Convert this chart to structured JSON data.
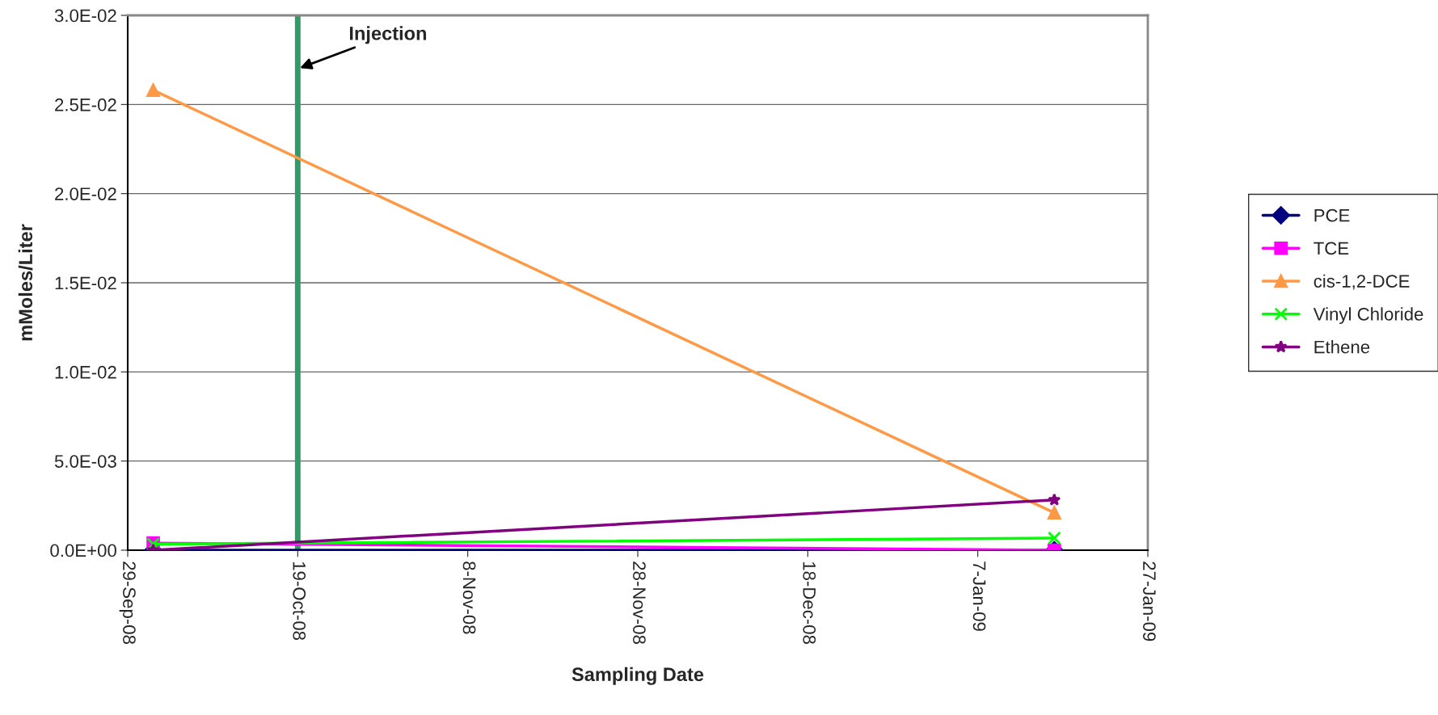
{
  "chart_data": {
    "type": "line",
    "xlabel": "Sampling Date",
    "ylabel": "mMoles/Liter",
    "x": [
      "2008-10-02",
      "2009-01-16"
    ],
    "series": [
      {
        "name": "PCE",
        "color": "#000080",
        "marker": "diamond",
        "values": [
          0.0,
          0.0
        ]
      },
      {
        "name": "TCE",
        "color": "#ff00ff",
        "marker": "square",
        "values": [
          0.0004,
          0.0
        ]
      },
      {
        "name": "cis-1,2-DCE",
        "color": "#ff9945",
        "marker": "triangle",
        "values": [
          0.0258,
          0.0021
        ]
      },
      {
        "name": "Vinyl Chloride",
        "color": "#00ff00",
        "marker": "cross",
        "values": [
          0.00034,
          0.00068
        ]
      },
      {
        "name": "Ethene",
        "color": "#800080",
        "marker": "star",
        "values": [
          0.0,
          0.00282
        ]
      }
    ],
    "xlim": [
      "2008-09-29",
      "2009-01-27"
    ],
    "xticks": [
      {
        "value": "2008-09-29",
        "label": "29-Sep-08"
      },
      {
        "value": "2008-10-19",
        "label": "19-Oct-08"
      },
      {
        "value": "2008-11-08",
        "label": "8-Nov-08"
      },
      {
        "value": "2008-11-28",
        "label": "28-Nov-08"
      },
      {
        "value": "2008-12-18",
        "label": "18-Dec-08"
      },
      {
        "value": "2009-01-07",
        "label": "7-Jan-09"
      },
      {
        "value": "2009-01-27",
        "label": "27-Jan-09"
      }
    ],
    "ylim": [
      0,
      0.03
    ],
    "yticks": [
      {
        "value": 0,
        "label": "0.0E+00"
      },
      {
        "value": 0.005,
        "label": "5.0E-03"
      },
      {
        "value": 0.01,
        "label": "1.0E-02"
      },
      {
        "value": 0.015,
        "label": "1.5E-02"
      },
      {
        "value": 0.02,
        "label": "2.0E-02"
      },
      {
        "value": 0.025,
        "label": "2.5E-02"
      },
      {
        "value": 0.03,
        "label": "3.0E-02"
      }
    ],
    "ref_lines": [
      {
        "axis": "x",
        "value": "2008-10-19",
        "label": "Injection",
        "color": "#339966"
      }
    ],
    "grid": "y",
    "legend": "right",
    "line_style": "solid"
  }
}
